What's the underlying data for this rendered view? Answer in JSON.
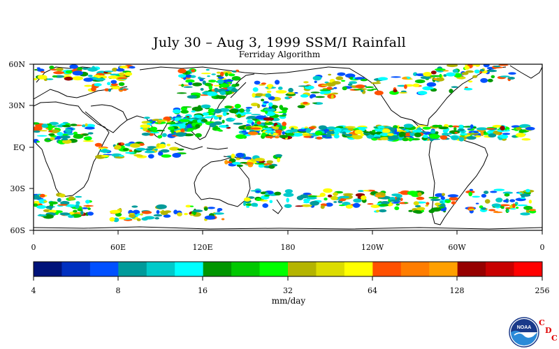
{
  "title": "July 30 – Aug 3, 1999 SSM/I Rainfall",
  "subtitle": "Ferriday Algorithm",
  "map": {
    "lat_labels": [
      "60N",
      "30N",
      "EQ",
      "30S",
      "60S"
    ],
    "lon_labels": [
      "0",
      "60E",
      "120E",
      "180",
      "120W",
      "60W",
      "0"
    ]
  },
  "colorbar": {
    "units": "mm/day",
    "tick_labels": [
      "4",
      "8",
      "16",
      "32",
      "64",
      "128",
      "256"
    ],
    "colors": [
      "#00137a",
      "#0030c0",
      "#0050ff",
      "#009a9a",
      "#00caca",
      "#00ffff",
      "#009600",
      "#00c800",
      "#00ff00",
      "#b4b400",
      "#dcdc00",
      "#ffff00",
      "#ff5000",
      "#ff7d00",
      "#ffa000",
      "#960000",
      "#c80000",
      "#ff0000"
    ]
  },
  "logo": {
    "text": "NOAA",
    "cdc_letters": [
      "C",
      "D",
      "C"
    ]
  }
}
